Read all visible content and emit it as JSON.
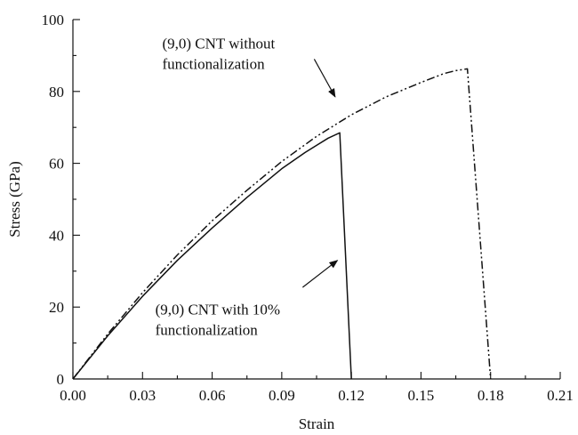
{
  "chart_data": {
    "type": "line",
    "xlabel": "Strain",
    "ylabel": "Stress (GPa)",
    "xlim": [
      0,
      0.21
    ],
    "ylim": [
      0,
      100
    ],
    "xticks": [
      "0.00",
      "0.03",
      "0.06",
      "0.09",
      "0.12",
      "0.15",
      "0.18",
      "0.21"
    ],
    "yticks": [
      "0",
      "20",
      "40",
      "60",
      "80",
      "100"
    ],
    "grid": false,
    "series": [
      {
        "name": "(9,0) CNT without functionalization",
        "style": "dash-dot-dot",
        "color": "#111111",
        "x": [
          0,
          0.015,
          0.03,
          0.045,
          0.06,
          0.075,
          0.09,
          0.105,
          0.12,
          0.135,
          0.15,
          0.16,
          0.165,
          0.17,
          0.18
        ],
        "y": [
          0,
          12.5,
          24,
          34.5,
          44,
          52.5,
          60.5,
          67.5,
          73.5,
          78.5,
          82.5,
          85,
          85.8,
          86.3,
          0
        ]
      },
      {
        "name": "(9,0) CNT with 10% functionalization",
        "style": "solid",
        "color": "#111111",
        "x": [
          0,
          0.015,
          0.03,
          0.045,
          0.06,
          0.075,
          0.09,
          0.1,
          0.105,
          0.11,
          0.115,
          0.12
        ],
        "y": [
          0,
          12,
          23,
          33,
          42,
          50.5,
          58.5,
          63,
          65,
          67,
          68.5,
          0
        ]
      }
    ],
    "annotations": [
      {
        "lines": [
          "(9,0) CNT without",
          "functionalization"
        ],
        "text_x": 0.0385,
        "text_y": 92,
        "arrow_from": [
          0.104,
          89
        ],
        "arrow_to": [
          0.113,
          78.5
        ]
      },
      {
        "lines": [
          "(9,0) CNT with 10%",
          "functionalization"
        ],
        "text_x": 0.0355,
        "text_y": 18,
        "arrow_from": [
          0.099,
          25.5
        ],
        "arrow_to": [
          0.114,
          33
        ]
      }
    ]
  }
}
